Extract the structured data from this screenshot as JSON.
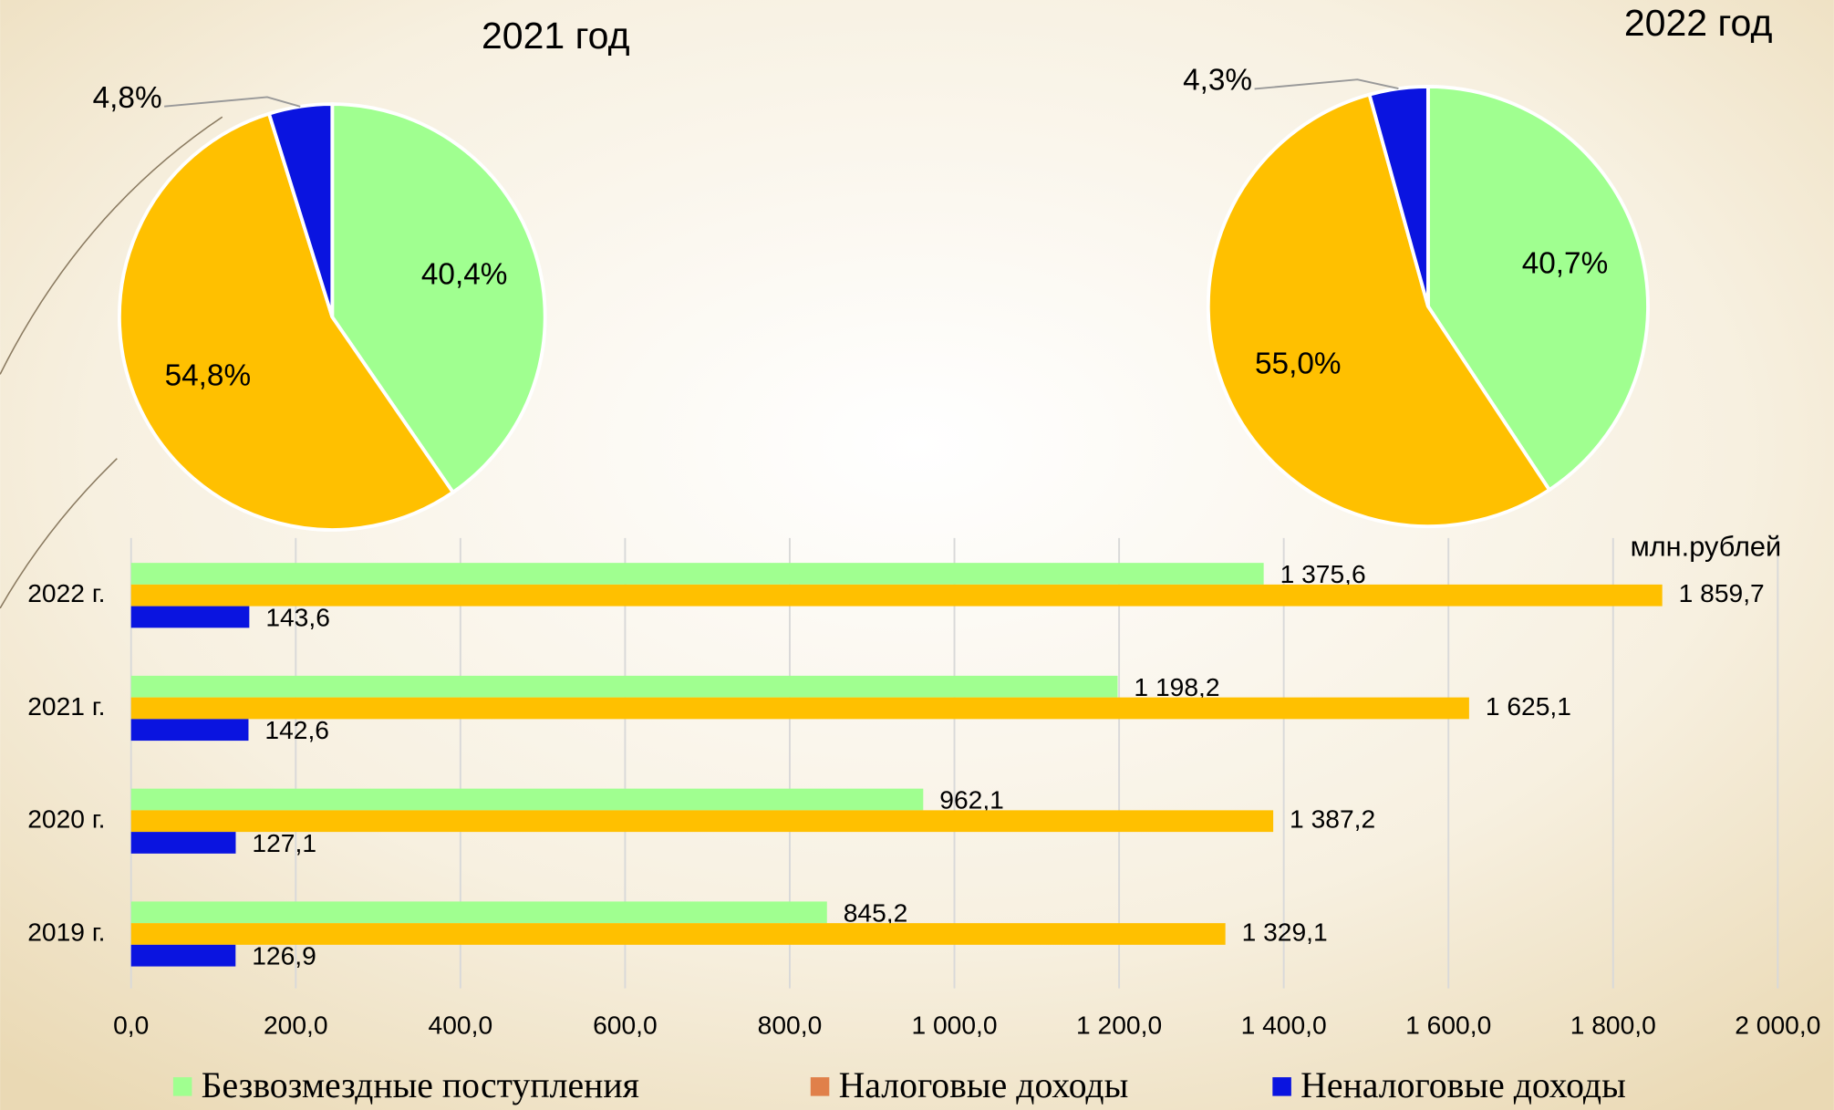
{
  "chart_data": [
    {
      "type": "pie",
      "title": "2021 год",
      "values": [
        40.4,
        54.8,
        4.8
      ],
      "value_labels": [
        "40,4%",
        "54,8%",
        "4,8%"
      ],
      "colors": [
        "#A0FF90",
        "#FFC000",
        "#0A14E0"
      ]
    },
    {
      "type": "pie",
      "title": "2022 год",
      "values": [
        40.7,
        55.0,
        4.3
      ],
      "value_labels": [
        "40,7%",
        "55,0%",
        "4,3%"
      ],
      "colors": [
        "#A0FF90",
        "#FFC000",
        "#0A14E0"
      ]
    },
    {
      "type": "hbar",
      "unit_label": "млн.рублей",
      "categories": [
        "2022 г.",
        "2021 г.",
        "2020 г.",
        "2019 г."
      ],
      "series": [
        {
          "name": "Безвозмездные поступления",
          "color": "#A0FF90",
          "legend_color": "#A0FF90",
          "values": [
            1375.6,
            1198.2,
            962.1,
            845.2
          ],
          "value_labels": [
            "1 375,6",
            "1 198,2",
            "962,1",
            "845,2"
          ]
        },
        {
          "name": "Налоговые доходы",
          "color": "#FFC000",
          "legend_color": "#E0804A",
          "values": [
            1859.7,
            1625.1,
            1387.2,
            1329.1
          ],
          "value_labels": [
            "1 859,7",
            "1 625,1",
            "1 387,2",
            "1 329,1"
          ]
        },
        {
          "name": "Неналоговые доходы",
          "color": "#0A14E0",
          "legend_color": "#0A14E0",
          "values": [
            143.6,
            142.6,
            127.1,
            126.9
          ],
          "value_labels": [
            "143,6",
            "142,6",
            "127,1",
            "126,9"
          ]
        }
      ],
      "xlim": [
        0,
        2000
      ],
      "xticks": [
        {
          "value": 0,
          "label": "0,0"
        },
        {
          "value": 200,
          "label": "200,0"
        },
        {
          "value": 400,
          "label": "400,0"
        },
        {
          "value": 600,
          "label": "600,0"
        },
        {
          "value": 800,
          "label": "800,0"
        },
        {
          "value": 1000,
          "label": "1 000,0"
        },
        {
          "value": 1200,
          "label": "1 200,0"
        },
        {
          "value": 1400,
          "label": "1 400,0"
        },
        {
          "value": 1600,
          "label": "1 600,0"
        },
        {
          "value": 1800,
          "label": "1 800,0"
        },
        {
          "value": 2000,
          "label": "2 000,0"
        }
      ],
      "grid": true,
      "legend": "bottom"
    }
  ]
}
